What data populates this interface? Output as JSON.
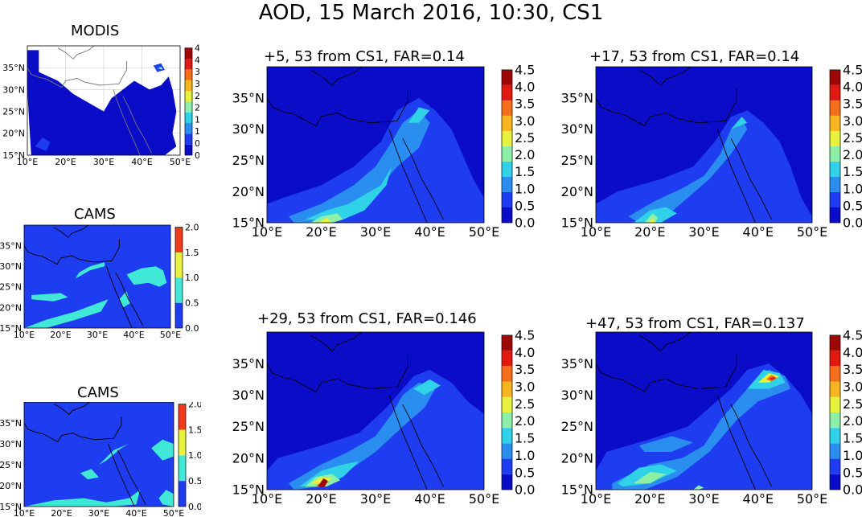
{
  "figure_title": "AOD, 15 March 2016, 10:30, CS1",
  "axes": {
    "lat_ticks": [
      "15°N",
      "20°N",
      "25°N",
      "30°N",
      "35°N"
    ],
    "lon_ticks": [
      "10°E",
      "20°E",
      "30°E",
      "40°E",
      "50°E"
    ]
  },
  "colorbar_large": {
    "ticks": [
      "0.0",
      "0.5",
      "1.0",
      "1.5",
      "2.0",
      "2.5",
      "3.0",
      "3.5",
      "4.0",
      "4.5"
    ],
    "colors": [
      "#0a0cc8",
      "#1e3cf0",
      "#2a8ef0",
      "#2fd2e6",
      "#8ef0a8",
      "#e6f23c",
      "#f6b41e",
      "#f66e1a",
      "#e01a10",
      "#a00808"
    ]
  },
  "colorbar_small": {
    "ticks": [
      "0.0",
      "0.5",
      "1.0",
      "1.5",
      "2.0"
    ],
    "colors": [
      "#1e3cf0",
      "#40e8d8",
      "#e6f23c",
      "#f03a1a"
    ]
  },
  "panels": [
    {
      "id": "modis",
      "title": "MODIS"
    },
    {
      "id": "cams-1",
      "title": "CAMS"
    },
    {
      "id": "cams-2",
      "title": "CAMS"
    },
    {
      "id": "fc-5",
      "title": "+5, 53 from CS1, FAR=0.14"
    },
    {
      "id": "fc-17",
      "title": "+17, 53 from CS1, FAR=0.14"
    },
    {
      "id": "fc-29",
      "title": "+29, 53 from CS1, FAR=0.146"
    },
    {
      "id": "fc-47",
      "title": "+47, 53 from CS1, FAR=0.137"
    }
  ]
}
